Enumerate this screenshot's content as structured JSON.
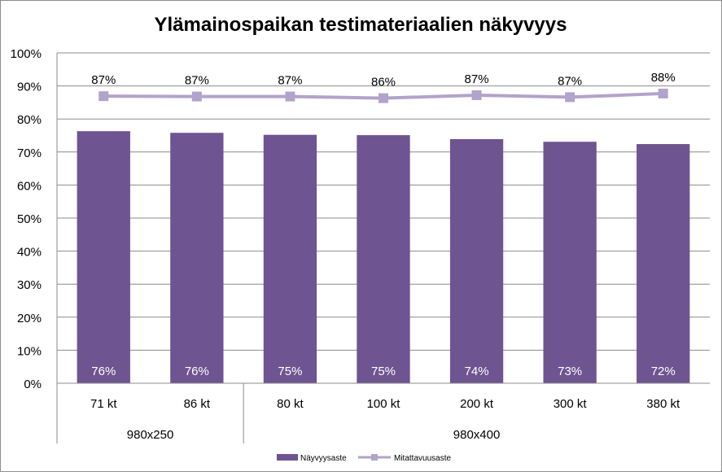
{
  "chart_data": {
    "type": "bar",
    "title": "Ylämainospaikan testimateriaalien näkyvyys",
    "categories": [
      "71 kt",
      "86 kt",
      "80 kt",
      "100 kt",
      "200 kt",
      "300 kt",
      "380 kt"
    ],
    "groups": [
      {
        "label": "980x250",
        "categories": [
          "71 kt",
          "86 kt"
        ]
      },
      {
        "label": "980x400",
        "categories": [
          "80 kt",
          "100 kt",
          "200 kt",
          "300 kt",
          "380 kt"
        ]
      }
    ],
    "series": [
      {
        "name": "Näyvyysaste",
        "type": "bar",
        "color": "#6e5490",
        "values": [
          76.3,
          75.8,
          75.2,
          75.1,
          73.9,
          73.1,
          72.4
        ],
        "labels": [
          "76%",
          "76%",
          "75%",
          "75%",
          "74%",
          "73%",
          "72%"
        ]
      },
      {
        "name": "Mitattavuusaste",
        "type": "line",
        "color": "#b2a3cb",
        "values": [
          86.9,
          86.8,
          86.8,
          86.3,
          87.2,
          86.6,
          87.7
        ],
        "labels": [
          "87%",
          "87%",
          "87%",
          "86%",
          "87%",
          "87%",
          "88%"
        ]
      }
    ],
    "ylim": [
      0,
      100
    ],
    "yticks": [
      "0%",
      "10%",
      "20%",
      "30%",
      "40%",
      "50%",
      "60%",
      "70%",
      "80%",
      "90%",
      "100%"
    ],
    "grid": true,
    "legend": "bottom"
  }
}
